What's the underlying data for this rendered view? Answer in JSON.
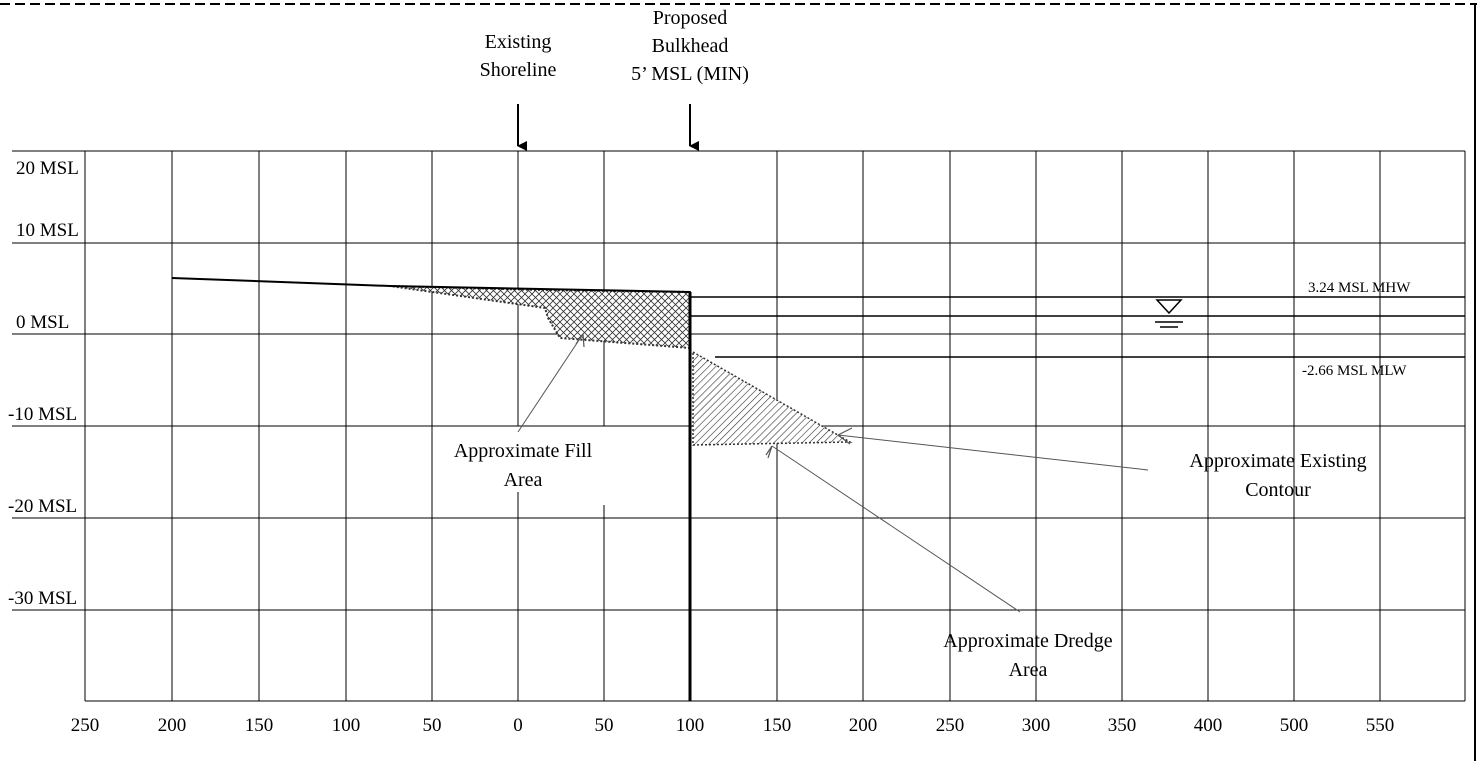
{
  "diagram": {
    "elevation_labels": [
      "20 MSL",
      "10 MSL",
      "0 MSL",
      "-10 MSL",
      "-20 MSL",
      "-30 MSL"
    ],
    "station_labels": [
      "250",
      "200",
      "150",
      "100",
      "50",
      "0",
      "50",
      "100",
      "150",
      "200",
      "250",
      "300",
      "350",
      "400",
      "500",
      "550"
    ],
    "existing_shoreline": [
      "Existing",
      "Shoreline"
    ],
    "proposed_bulkhead": [
      "Proposed",
      "Bulkhead",
      "5’ MSL (MIN)"
    ],
    "mhw_label": "3.24 MSL MHW",
    "mlw_label": "-2.66 MSL MLW",
    "fill_area": [
      "Approximate Fill",
      "Area"
    ],
    "dredge_area": [
      "Approximate Dredge",
      "Area"
    ],
    "existing_contour": [
      "Approximate Existing",
      "Contour"
    ],
    "icons": {
      "water_level": "water-surface-triangle-icon",
      "arrows": "arrow-down-icon"
    },
    "colors": {
      "line": "#000000",
      "leader": "#555555"
    }
  }
}
